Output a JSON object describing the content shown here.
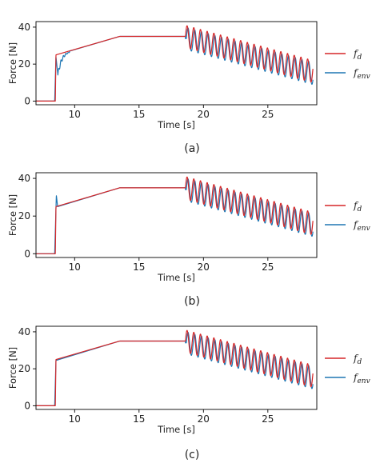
{
  "chart_data": [
    {
      "type": "line",
      "caption": "(a)",
      "xlabel": "Time [s]",
      "ylabel": "Force [N]",
      "xlim": [
        7,
        28.8
      ],
      "ylim": [
        -2,
        43
      ],
      "xticks": [
        "10",
        "15",
        "20",
        "25"
      ],
      "xtick_values": [
        10,
        15,
        20,
        25
      ],
      "yticks": [
        "0",
        "20",
        "40"
      ],
      "ytick_values": [
        0,
        20,
        40
      ],
      "grid": false,
      "legend_position": "right",
      "series": [
        {
          "name": "f_d",
          "label_base": "f",
          "label_sub": "d",
          "color": "#d62728",
          "x": [
            7.0,
            8.5,
            8.55,
            13.5,
            18.6,
            18.8,
            28.5
          ],
          "y": [
            0,
            0,
            25,
            35,
            35,
            "sinusoid: center 35→16, amplitude ≈6, period ≈0.52 s",
            16
          ]
        },
        {
          "name": "f_env",
          "label_base": "f",
          "label_sub": "env",
          "color": "#1f77b4",
          "x": [
            7.0,
            8.45,
            8.55,
            8.7,
            9.0,
            9.5,
            13.5,
            18.6,
            28.5
          ],
          "y": [
            0,
            0,
            24,
            14,
            22,
            27,
            35,
            35,
            15
          ],
          "note": "slow rise after step, lags red during oscillation"
        }
      ]
    },
    {
      "type": "line",
      "caption": "(b)",
      "xlabel": "Time [s]",
      "ylabel": "Force [N]",
      "xlim": [
        7,
        28.8
      ],
      "ylim": [
        -2,
        43
      ],
      "xticks": [
        "10",
        "15",
        "20",
        "25"
      ],
      "xtick_values": [
        10,
        15,
        20,
        25
      ],
      "yticks": [
        "0",
        "20",
        "40"
      ],
      "ytick_values": [
        0,
        20,
        40
      ],
      "grid": false,
      "legend_position": "right",
      "series": [
        {
          "name": "f_d",
          "label_base": "f",
          "label_sub": "d",
          "color": "#d62728",
          "x": [
            7.0,
            8.5,
            8.55,
            13.5,
            18.6,
            28.5
          ],
          "y": [
            0,
            0,
            25,
            35,
            35,
            16
          ]
        },
        {
          "name": "f_env",
          "label_base": "f",
          "label_sub": "env",
          "color": "#1f77b4",
          "x": [
            7.0,
            8.45,
            8.6,
            8.65,
            13.5,
            18.6,
            28.5
          ],
          "y": [
            0,
            0,
            31,
            25,
            35,
            35,
            15
          ]
        }
      ]
    },
    {
      "type": "line",
      "caption": "(c)",
      "xlabel": "Time [s]",
      "ylabel": "Force [N]",
      "xlim": [
        7,
        28.8
      ],
      "ylim": [
        -2,
        43
      ],
      "xticks": [
        "10",
        "15",
        "20",
        "25"
      ],
      "xtick_values": [
        10,
        15,
        20,
        25
      ],
      "yticks": [
        "0",
        "20",
        "40"
      ],
      "ytick_values": [
        0,
        20,
        40
      ],
      "grid": false,
      "legend_position": "right",
      "series": [
        {
          "name": "f_d",
          "label_base": "f",
          "label_sub": "d",
          "color": "#d62728",
          "x": [
            7.0,
            8.5,
            8.55,
            13.5,
            18.6,
            28.5
          ],
          "y": [
            0,
            0,
            25,
            35,
            35,
            16
          ]
        },
        {
          "name": "f_env",
          "label_base": "f",
          "label_sub": "env",
          "color": "#1f77b4",
          "x": [
            7.0,
            8.45,
            8.55,
            13.5,
            18.6,
            28.5
          ],
          "y": [
            0,
            0,
            24.5,
            35,
            35,
            15
          ]
        }
      ]
    }
  ]
}
